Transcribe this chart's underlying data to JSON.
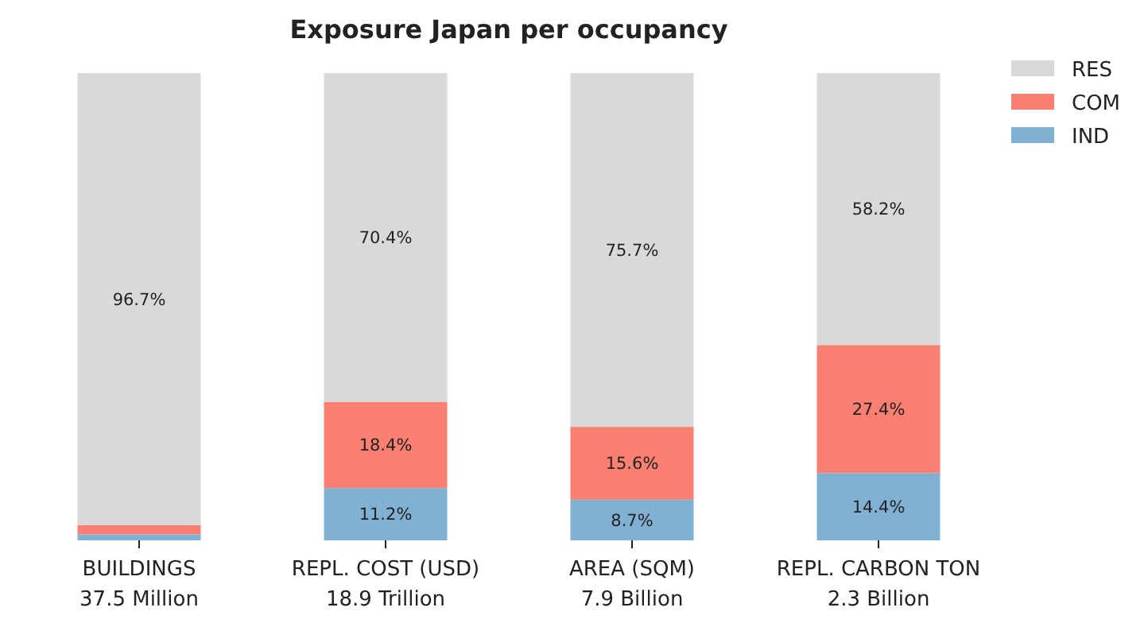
{
  "chart_data": {
    "type": "bar",
    "stacked": true,
    "title": "Exposure Japan per occupancy",
    "categories": [
      "BUILDINGS\n37.5 Million",
      "REPL. COST (USD)\n18.9 Trillion",
      "AREA (SQM)\n7.9 Billion",
      "REPL. CARBON TON\n2.3 Billion"
    ],
    "ylim": [
      0,
      100
    ],
    "tick_labels": "x",
    "legend": "top right",
    "series": [
      {
        "name": "IND",
        "color": "#80b1d3",
        "values": [
          1.3,
          11.2,
          8.7,
          14.4
        ],
        "value_labels": [
          null,
          "11.2%",
          "8.7%",
          "14.4%"
        ]
      },
      {
        "name": "COM",
        "color": "#fb8072",
        "values": [
          2.0,
          18.4,
          15.6,
          27.4
        ],
        "value_labels": [
          null,
          "18.4%",
          "15.6%",
          "27.4%"
        ]
      },
      {
        "name": "RES",
        "color": "#d9d9d9",
        "values": [
          96.7,
          70.4,
          75.7,
          58.2
        ],
        "value_labels": [
          "96.7%",
          "70.4%",
          "75.7%",
          "58.2%"
        ]
      }
    ]
  }
}
